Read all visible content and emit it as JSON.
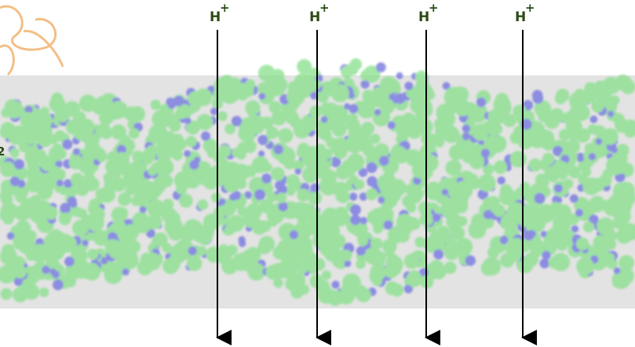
{
  "edge_label": "2",
  "protons": [
    {
      "symbol": "H",
      "charge": "+"
    },
    {
      "symbol": "H",
      "charge": "+"
    },
    {
      "symbol": "H",
      "charge": "+"
    },
    {
      "symbol": "H",
      "charge": "+"
    }
  ]
}
